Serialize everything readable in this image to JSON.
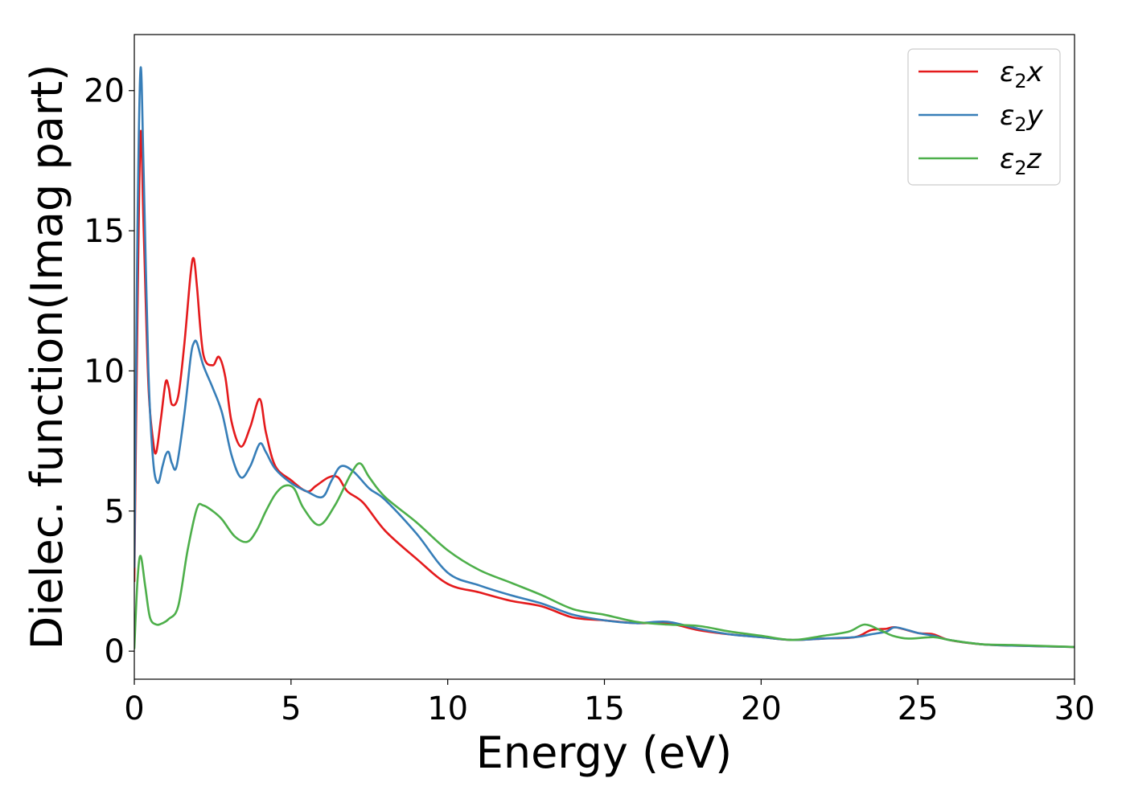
{
  "chart_data": {
    "type": "line",
    "title": "",
    "xlabel": "Energy (eV)",
    "ylabel": "Dielec. function(Imag part)",
    "xlim": [
      0,
      30
    ],
    "ylim": [
      -1,
      22
    ],
    "xticks": [
      0,
      5,
      10,
      15,
      20,
      25,
      30
    ],
    "yticks": [
      0,
      5,
      10,
      15,
      20
    ],
    "grid": false,
    "legend_position": "top-right",
    "series": [
      {
        "name": "ε₂x",
        "legend_main": "ε",
        "legend_sub": "2",
        "legend_suffix": "x",
        "color": "#e41a1c",
        "x": [
          0,
          0.1,
          0.2,
          0.3,
          0.45,
          0.6,
          0.7,
          0.85,
          1.0,
          1.1,
          1.2,
          1.4,
          1.6,
          1.8,
          1.9,
          2.0,
          2.2,
          2.5,
          2.7,
          2.9,
          3.1,
          3.4,
          3.7,
          4.0,
          4.2,
          4.5,
          5.0,
          5.5,
          5.8,
          6.2,
          6.5,
          6.8,
          7.3,
          8.0,
          9.0,
          10.0,
          11.0,
          12.0,
          13.0,
          14.0,
          15.0,
          16.0,
          17.0,
          18.0,
          19.0,
          20.0,
          21.0,
          22.0,
          23.0,
          23.5,
          24.0,
          24.3,
          25.0,
          25.5,
          26.0,
          27.0,
          28.0,
          30.0
        ],
        "y": [
          2.5,
          12.0,
          18.5,
          15.0,
          9.5,
          7.5,
          7.1,
          8.3,
          9.6,
          9.4,
          8.8,
          9.1,
          11.0,
          13.5,
          14.0,
          13.0,
          10.6,
          10.2,
          10.5,
          9.8,
          8.2,
          7.3,
          8.0,
          9.0,
          7.8,
          6.6,
          6.1,
          5.7,
          5.9,
          6.2,
          6.2,
          5.7,
          5.3,
          4.3,
          3.3,
          2.4,
          2.1,
          1.8,
          1.6,
          1.2,
          1.1,
          1.0,
          1.0,
          0.75,
          0.6,
          0.5,
          0.4,
          0.45,
          0.5,
          0.75,
          0.8,
          0.85,
          0.65,
          0.6,
          0.4,
          0.25,
          0.2,
          0.15
        ]
      },
      {
        "name": "ε₂y",
        "legend_main": "ε",
        "legend_sub": "2",
        "legend_suffix": "y",
        "color": "#377eb8",
        "x": [
          0,
          0.1,
          0.2,
          0.3,
          0.45,
          0.6,
          0.75,
          0.9,
          1.0,
          1.1,
          1.2,
          1.35,
          1.6,
          1.8,
          1.9,
          2.0,
          2.2,
          2.5,
          2.8,
          3.1,
          3.4,
          3.7,
          4.0,
          4.2,
          4.5,
          5.0,
          5.5,
          6.0,
          6.3,
          6.6,
          7.0,
          7.5,
          8.0,
          9.0,
          10.0,
          11.0,
          12.0,
          13.0,
          14.0,
          15.0,
          16.0,
          17.0,
          18.0,
          19.0,
          20.0,
          21.0,
          22.0,
          23.0,
          23.5,
          24.0,
          24.3,
          25.0,
          25.5,
          26.0,
          27.0,
          28.0,
          30.0
        ],
        "y": [
          3.0,
          15.0,
          20.8,
          17.0,
          10.0,
          6.8,
          6.0,
          6.6,
          7.0,
          7.1,
          6.7,
          6.6,
          8.5,
          10.5,
          11.0,
          11.0,
          10.2,
          9.4,
          8.5,
          7.0,
          6.2,
          6.6,
          7.4,
          7.1,
          6.5,
          6.0,
          5.7,
          5.5,
          6.1,
          6.6,
          6.4,
          5.8,
          5.4,
          4.2,
          2.8,
          2.35,
          2.0,
          1.7,
          1.3,
          1.1,
          1.0,
          1.05,
          0.8,
          0.6,
          0.5,
          0.4,
          0.45,
          0.5,
          0.6,
          0.7,
          0.85,
          0.65,
          0.55,
          0.4,
          0.25,
          0.2,
          0.15
        ]
      },
      {
        "name": "ε₂z",
        "legend_main": "ε",
        "legend_sub": "2",
        "legend_suffix": "z",
        "color": "#4daf4a",
        "x": [
          0,
          0.1,
          0.2,
          0.35,
          0.5,
          0.7,
          0.9,
          1.1,
          1.4,
          1.7,
          2.0,
          2.2,
          2.5,
          2.8,
          3.2,
          3.6,
          3.9,
          4.2,
          4.5,
          4.8,
          5.1,
          5.4,
          5.9,
          6.4,
          6.9,
          7.2,
          7.5,
          8.0,
          9.0,
          10.0,
          11.0,
          12.0,
          13.0,
          14.0,
          15.0,
          16.0,
          17.0,
          18.0,
          19.0,
          20.0,
          21.0,
          22.0,
          22.8,
          23.3,
          23.8,
          24.2,
          24.7,
          25.5,
          26.0,
          27.0,
          28.0,
          30.0
        ],
        "y": [
          0.1,
          2.5,
          3.4,
          2.3,
          1.2,
          0.95,
          1.0,
          1.15,
          1.6,
          3.6,
          5.1,
          5.2,
          5.0,
          4.7,
          4.1,
          3.9,
          4.3,
          5.0,
          5.6,
          5.9,
          5.8,
          5.1,
          4.5,
          5.2,
          6.3,
          6.7,
          6.2,
          5.5,
          4.6,
          3.6,
          2.9,
          2.45,
          2.0,
          1.5,
          1.3,
          1.05,
          0.95,
          0.9,
          0.7,
          0.55,
          0.4,
          0.55,
          0.7,
          0.95,
          0.75,
          0.55,
          0.45,
          0.5,
          0.4,
          0.25,
          0.22,
          0.15
        ]
      }
    ]
  }
}
